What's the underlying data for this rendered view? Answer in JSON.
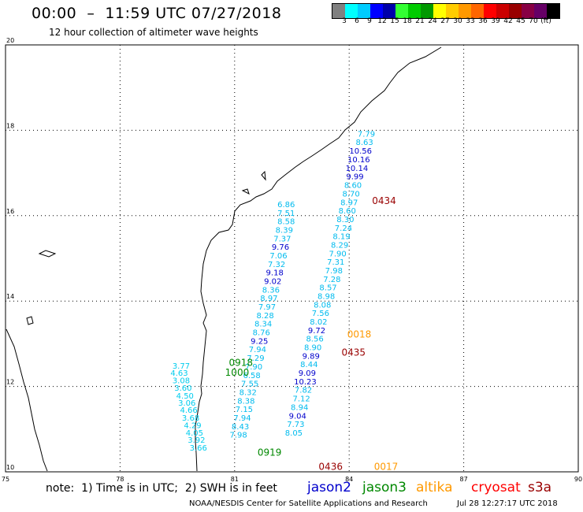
{
  "header": {
    "title": "00:00  –  11:59 UTC 07/27/2018",
    "subtitle": "12 hour collection of altimeter wave heights"
  },
  "colorbar": {
    "colors": [
      "#808080",
      "#00ffff",
      "#00ccff",
      "#0000ff",
      "#0000aa",
      "#33ff33",
      "#00cc00",
      "#009900",
      "#ffff00",
      "#ffcc00",
      "#ff9900",
      "#ff6600",
      "#ff0000",
      "#cc0000",
      "#990000",
      "#880044",
      "#660066",
      "#000000"
    ],
    "labels": [
      "3",
      "6",
      "9",
      "12",
      "15",
      "18",
      "21",
      "24",
      "27",
      "30",
      "33",
      "36",
      "39",
      "42",
      "45",
      "70",
      "(ft)"
    ]
  },
  "axes": {
    "lon_min": 75,
    "lon_max": 90,
    "lat_min": 10,
    "lat_max": 20,
    "x_ticks": [
      "75",
      "78",
      "81",
      "84",
      "87",
      "90"
    ],
    "y_ticks": [
      "20",
      "18",
      "16",
      "14",
      "12",
      "10"
    ]
  },
  "colors": {
    "jason2": "#0000cc",
    "jason3": "#008800",
    "altika": "#ff9900",
    "cryosat": "#ff0000",
    "s3a": "#990000"
  },
  "passes": [
    {
      "label": "0434",
      "sat": "s3a",
      "lon": 84.6,
      "lat": 16.27
    },
    {
      "label": "0018",
      "sat": "altika",
      "lon": 83.95,
      "lat": 13.15
    },
    {
      "label": "0435",
      "sat": "s3a",
      "lon": 83.8,
      "lat": 12.72
    },
    {
      "label": "0918",
      "sat": "jason3",
      "lon": 80.85,
      "lat": 12.48
    },
    {
      "label": "1000",
      "sat": "jason3",
      "lon": 80.75,
      "lat": 12.25
    },
    {
      "label": "0919",
      "sat": "jason3",
      "lon": 81.6,
      "lat": 10.38
    },
    {
      "label": "0436",
      "sat": "s3a",
      "lon": 83.2,
      "lat": 10.05
    },
    {
      "label": "0017",
      "sat": "altika",
      "lon": 84.65,
      "lat": 10.05
    }
  ],
  "observations": [
    {
      "v": "7.79",
      "lon": 84.45,
      "lat": 17.85,
      "c": "#00bbee"
    },
    {
      "v": "8.63",
      "lon": 84.4,
      "lat": 17.66,
      "c": "#00bbee"
    },
    {
      "v": "10.56",
      "lon": 84.3,
      "lat": 17.45,
      "c": "#0000cc"
    },
    {
      "v": "10.16",
      "lon": 84.25,
      "lat": 17.25,
      "c": "#0000cc"
    },
    {
      "v": "10.14",
      "lon": 84.2,
      "lat": 17.05,
      "c": "#0000cc"
    },
    {
      "v": "9.99",
      "lon": 84.15,
      "lat": 16.85,
      "c": "#0000cc"
    },
    {
      "v": "8.60",
      "lon": 84.1,
      "lat": 16.65,
      "c": "#00bbee"
    },
    {
      "v": "8.70",
      "lon": 84.05,
      "lat": 16.45,
      "c": "#00bbee"
    },
    {
      "v": "8.97",
      "lon": 84.0,
      "lat": 16.25,
      "c": "#00bbee"
    },
    {
      "v": "8.60",
      "lon": 83.95,
      "lat": 16.05,
      "c": "#00bbee"
    },
    {
      "v": "8.30",
      "lon": 83.9,
      "lat": 15.85,
      "c": "#00bbee"
    },
    {
      "v": "7.24",
      "lon": 83.85,
      "lat": 15.65,
      "c": "#00bbee"
    },
    {
      "v": "8.19",
      "lon": 83.8,
      "lat": 15.45,
      "c": "#00bbee"
    },
    {
      "v": "8.29",
      "lon": 83.75,
      "lat": 15.25,
      "c": "#00bbee"
    },
    {
      "v": "7.90",
      "lon": 83.7,
      "lat": 15.05,
      "c": "#00bbee"
    },
    {
      "v": "7.31",
      "lon": 83.65,
      "lat": 14.85,
      "c": "#00bbee"
    },
    {
      "v": "7.98",
      "lon": 83.6,
      "lat": 14.65,
      "c": "#00bbee"
    },
    {
      "v": "7.28",
      "lon": 83.55,
      "lat": 14.45,
      "c": "#00bbee"
    },
    {
      "v": "8.57",
      "lon": 83.45,
      "lat": 14.25,
      "c": "#00bbee"
    },
    {
      "v": "8.98",
      "lon": 83.4,
      "lat": 14.05,
      "c": "#00bbee"
    },
    {
      "v": "8.08",
      "lon": 83.3,
      "lat": 13.85,
      "c": "#00bbee"
    },
    {
      "v": "7.56",
      "lon": 83.25,
      "lat": 13.65,
      "c": "#00bbee"
    },
    {
      "v": "8.02",
      "lon": 83.2,
      "lat": 13.45,
      "c": "#00bbee"
    },
    {
      "v": "9.72",
      "lon": 83.15,
      "lat": 13.25,
      "c": "#0000cc"
    },
    {
      "v": "8.56",
      "lon": 83.1,
      "lat": 13.05,
      "c": "#00bbee"
    },
    {
      "v": "8.90",
      "lon": 83.05,
      "lat": 12.85,
      "c": "#00bbee"
    },
    {
      "v": "9.89",
      "lon": 83.0,
      "lat": 12.65,
      "c": "#0000cc"
    },
    {
      "v": "8.44",
      "lon": 82.95,
      "lat": 12.45,
      "c": "#00bbee"
    },
    {
      "v": "9.09",
      "lon": 82.9,
      "lat": 12.25,
      "c": "#0000cc"
    },
    {
      "v": "10.23",
      "lon": 82.85,
      "lat": 12.05,
      "c": "#0000cc"
    },
    {
      "v": "7.82",
      "lon": 82.8,
      "lat": 11.85,
      "c": "#00bbee"
    },
    {
      "v": "7.12",
      "lon": 82.75,
      "lat": 11.65,
      "c": "#00bbee"
    },
    {
      "v": "8.94",
      "lon": 82.7,
      "lat": 11.45,
      "c": "#00bbee"
    },
    {
      "v": "9.04",
      "lon": 82.65,
      "lat": 11.25,
      "c": "#0000cc"
    },
    {
      "v": "7.73",
      "lon": 82.6,
      "lat": 11.05,
      "c": "#00bbee"
    },
    {
      "v": "8.05",
      "lon": 82.55,
      "lat": 10.85,
      "c": "#00bbee"
    },
    {
      "v": "6.86",
      "lon": 82.35,
      "lat": 16.2,
      "c": "#00bbee"
    },
    {
      "v": "7.51",
      "lon": 82.35,
      "lat": 16.0,
      "c": "#00bbee"
    },
    {
      "v": "8.58",
      "lon": 82.35,
      "lat": 15.8,
      "c": "#00bbee"
    },
    {
      "v": "8.39",
      "lon": 82.3,
      "lat": 15.6,
      "c": "#00bbee"
    },
    {
      "v": "7.37",
      "lon": 82.25,
      "lat": 15.4,
      "c": "#00bbee"
    },
    {
      "v": "9.76",
      "lon": 82.2,
      "lat": 15.2,
      "c": "#0000cc"
    },
    {
      "v": "7.06",
      "lon": 82.15,
      "lat": 15.0,
      "c": "#00bbee"
    },
    {
      "v": "7.32",
      "lon": 82.1,
      "lat": 14.8,
      "c": "#00bbee"
    },
    {
      "v": "9.18",
      "lon": 82.05,
      "lat": 14.6,
      "c": "#0000cc"
    },
    {
      "v": "9.02",
      "lon": 82.0,
      "lat": 14.4,
      "c": "#0000cc"
    },
    {
      "v": "8.36",
      "lon": 81.95,
      "lat": 14.2,
      "c": "#00bbee"
    },
    {
      "v": "8.97",
      "lon": 81.9,
      "lat": 14.0,
      "c": "#00bbee"
    },
    {
      "v": "7.97",
      "lon": 81.85,
      "lat": 13.8,
      "c": "#00bbee"
    },
    {
      "v": "8.28",
      "lon": 81.8,
      "lat": 13.6,
      "c": "#00bbee"
    },
    {
      "v": "8.34",
      "lon": 81.75,
      "lat": 13.4,
      "c": "#00bbee"
    },
    {
      "v": "8.76",
      "lon": 81.7,
      "lat": 13.2,
      "c": "#00bbee"
    },
    {
      "v": "9.25",
      "lon": 81.65,
      "lat": 13.0,
      "c": "#0000cc"
    },
    {
      "v": "7.94",
      "lon": 81.6,
      "lat": 12.8,
      "c": "#00bbee"
    },
    {
      "v": "7.29",
      "lon": 81.55,
      "lat": 12.6,
      "c": "#00bbee"
    },
    {
      "v": "7.90",
      "lon": 81.5,
      "lat": 12.4,
      "c": "#00bbee"
    },
    {
      "v": "6.58",
      "lon": 81.45,
      "lat": 12.2,
      "c": "#00bbee"
    },
    {
      "v": "7.55",
      "lon": 81.4,
      "lat": 12.0,
      "c": "#00bbee"
    },
    {
      "v": "8.32",
      "lon": 81.35,
      "lat": 11.8,
      "c": "#00bbee"
    },
    {
      "v": "8.38",
      "lon": 81.3,
      "lat": 11.6,
      "c": "#00bbee"
    },
    {
      "v": "7.15",
      "lon": 81.25,
      "lat": 11.4,
      "c": "#00bbee"
    },
    {
      "v": "7.94",
      "lon": 81.2,
      "lat": 11.2,
      "c": "#00bbee"
    },
    {
      "v": "8.43",
      "lon": 81.15,
      "lat": 11.0,
      "c": "#00bbee"
    },
    {
      "v": "7.98",
      "lon": 81.1,
      "lat": 10.8,
      "c": "#00bbee"
    },
    {
      "v": "3.77",
      "lon": 79.6,
      "lat": 12.42,
      "c": "#00ccee"
    },
    {
      "v": "4.63",
      "lon": 79.55,
      "lat": 12.25,
      "c": "#00ccee"
    },
    {
      "v": "3.08",
      "lon": 79.6,
      "lat": 12.08,
      "c": "#00ccee"
    },
    {
      "v": "3.60",
      "lon": 79.65,
      "lat": 11.9,
      "c": "#00ccee"
    },
    {
      "v": "4.50",
      "lon": 79.7,
      "lat": 11.72,
      "c": "#00ccee"
    },
    {
      "v": "3.06",
      "lon": 79.75,
      "lat": 11.55,
      "c": "#00ccee"
    },
    {
      "v": "4.66",
      "lon": 79.8,
      "lat": 11.38,
      "c": "#00ccee"
    },
    {
      "v": "3.68",
      "lon": 79.85,
      "lat": 11.2,
      "c": "#00ccee"
    },
    {
      "v": "4.29",
      "lon": 79.9,
      "lat": 11.02,
      "c": "#00ccee"
    },
    {
      "v": "4.05",
      "lon": 79.95,
      "lat": 10.85,
      "c": "#00ccee"
    },
    {
      "v": "3.92",
      "lon": 80.0,
      "lat": 10.68,
      "c": "#00ccee"
    },
    {
      "v": "3.66",
      "lon": 80.05,
      "lat": 10.5,
      "c": "#00ccee"
    }
  ],
  "footer": {
    "note": "note:  1) Time is in UTC;  2) SWH is in feet",
    "sats": [
      {
        "name": "jason2",
        "color": "#0000cc"
      },
      {
        "name": "jason3",
        "color": "#008800"
      },
      {
        "name": "altika",
        "color": "#ff9900"
      },
      {
        "name": "cryosat",
        "color": "#ff0000"
      },
      {
        "name": "s3a",
        "color": "#990000"
      }
    ],
    "credit": "NOAA/NESDIS Center for Satellite Applications and Research",
    "generated": "Jul 28 12:27:17 UTC 2018"
  }
}
